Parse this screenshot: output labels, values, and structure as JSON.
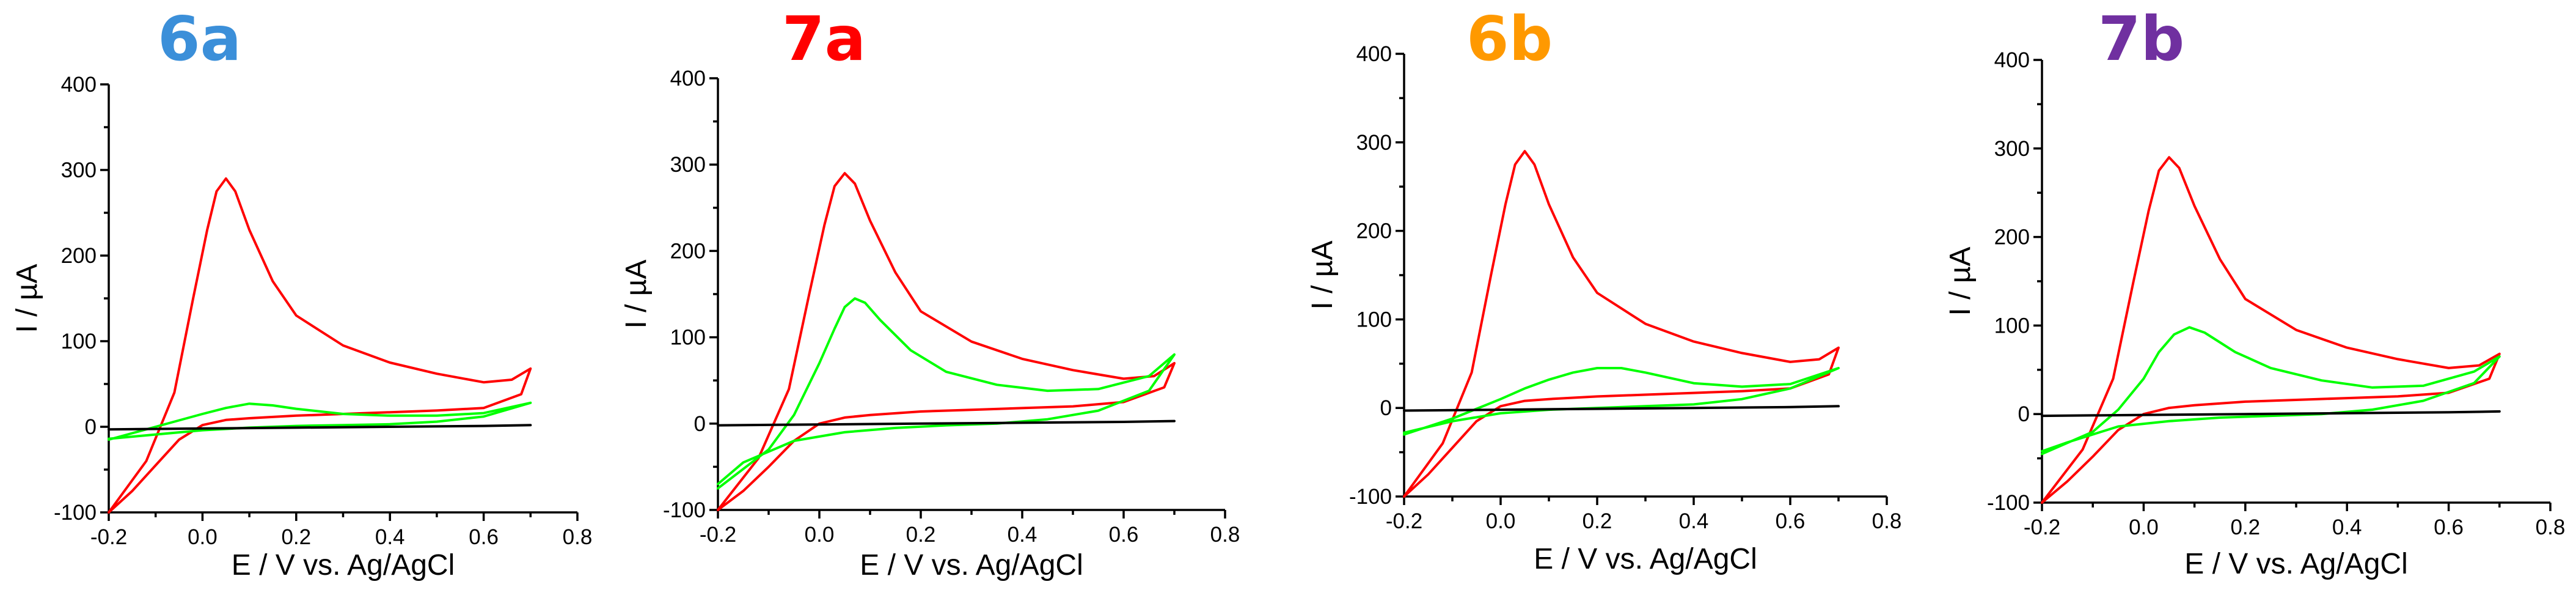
{
  "colors": {
    "cv_active": "#ff0000",
    "cv_modified": "#00ff00",
    "cv_blank": "#000000"
  },
  "chart_data": [
    {
      "type": "line",
      "title": "6a",
      "title_color": "#3b8fd9",
      "xlabel": "E / V vs. Ag/AgCl",
      "ylabel": "I / µA",
      "xlim": [
        -0.2,
        0.8
      ],
      "ylim": [
        -100,
        400
      ],
      "xticks": [
        -0.2,
        0.0,
        0.2,
        0.4,
        0.6,
        0.8
      ],
      "yticks": [
        -100,
        0,
        100,
        200,
        300,
        400
      ],
      "xtick_labels": [
        "-0.2",
        "0.0",
        "0.2",
        "0.4",
        "0.6",
        "0.8"
      ],
      "ytick_labels": [
        "-100",
        "0",
        "100",
        "200",
        "300",
        "400"
      ],
      "grid": false,
      "series": [
        {
          "color": "#ff0000",
          "x": [
            -0.2,
            -0.12,
            -0.06,
            -0.02,
            0.01,
            0.03,
            0.05,
            0.07,
            0.1,
            0.15,
            0.2,
            0.3,
            0.4,
            0.5,
            0.6,
            0.66,
            0.7,
            0.68,
            0.6,
            0.5,
            0.4,
            0.3,
            0.2,
            0.1,
            0.05,
            0.0,
            -0.05,
            -0.1,
            -0.15,
            -0.2
          ],
          "y": [
            -100,
            -40,
            40,
            150,
            230,
            275,
            290,
            275,
            230,
            170,
            130,
            95,
            75,
            62,
            52,
            55,
            68,
            38,
            22,
            19,
            17,
            15,
            13,
            10,
            8,
            2,
            -15,
            -45,
            -75,
            -100
          ]
        },
        {
          "color": "#00ff00",
          "x": [
            -0.2,
            -0.1,
            0.0,
            0.05,
            0.1,
            0.15,
            0.2,
            0.3,
            0.4,
            0.5,
            0.6,
            0.7,
            0.6,
            0.5,
            0.4,
            0.3,
            0.2,
            0.1,
            0.0,
            -0.1,
            -0.2
          ],
          "y": [
            -15,
            0,
            15,
            22,
            27,
            25,
            21,
            15,
            13,
            13,
            16,
            28,
            12,
            6,
            3,
            2,
            1,
            -1,
            -4,
            -9,
            -14
          ]
        },
        {
          "color": "#000000",
          "x": [
            -0.2,
            0.0,
            0.2,
            0.4,
            0.6,
            0.7
          ],
          "y": [
            -3,
            -2,
            -1,
            0,
            1,
            2
          ]
        }
      ]
    },
    {
      "type": "line",
      "title": "7a",
      "title_color": "#ff0000",
      "xlabel": "E / V vs. Ag/AgCl",
      "ylabel": "I / µA",
      "xlim": [
        -0.2,
        0.8
      ],
      "ylim": [
        -100,
        400
      ],
      "xticks": [
        -0.2,
        0.0,
        0.2,
        0.4,
        0.6,
        0.8
      ],
      "yticks": [
        -100,
        0,
        100,
        200,
        300,
        400
      ],
      "xtick_labels": [
        "-0.2",
        "0.0",
        "0.2",
        "0.4",
        "0.6",
        "0.8"
      ],
      "ytick_labels": [
        "-100",
        "0",
        "100",
        "200",
        "300",
        "400"
      ],
      "grid": false,
      "series": [
        {
          "color": "#ff0000",
          "x": [
            -0.2,
            -0.12,
            -0.06,
            -0.02,
            0.01,
            0.03,
            0.05,
            0.07,
            0.1,
            0.15,
            0.2,
            0.3,
            0.4,
            0.5,
            0.6,
            0.66,
            0.7,
            0.68,
            0.6,
            0.5,
            0.4,
            0.3,
            0.2,
            0.1,
            0.05,
            0.0,
            -0.05,
            -0.1,
            -0.15,
            -0.2
          ],
          "y": [
            -100,
            -40,
            40,
            150,
            230,
            275,
            290,
            278,
            235,
            175,
            130,
            95,
            75,
            62,
            52,
            55,
            70,
            42,
            25,
            20,
            18,
            16,
            14,
            10,
            7,
            0,
            -20,
            -50,
            -78,
            -100
          ]
        },
        {
          "color": "#00ff00",
          "x": [
            -0.2,
            -0.1,
            -0.05,
            0.0,
            0.03,
            0.05,
            0.07,
            0.09,
            0.12,
            0.18,
            0.25,
            0.35,
            0.45,
            0.55,
            0.65,
            0.7,
            0.65,
            0.55,
            0.45,
            0.35,
            0.25,
            0.15,
            0.05,
            -0.05,
            -0.15,
            -0.2
          ],
          "y": [
            -75,
            -30,
            10,
            70,
            110,
            135,
            145,
            140,
            120,
            85,
            60,
            45,
            38,
            40,
            55,
            80,
            38,
            15,
            5,
            0,
            -2,
            -5,
            -10,
            -20,
            -45,
            -70
          ]
        },
        {
          "color": "#000000",
          "x": [
            -0.2,
            0.0,
            0.2,
            0.4,
            0.6,
            0.7
          ],
          "y": [
            -2,
            -1,
            0,
            1,
            2,
            3
          ]
        }
      ]
    },
    {
      "type": "line",
      "title": "6b",
      "title_color": "#ff9900",
      "xlabel": "E / V vs. Ag/AgCl",
      "ylabel": "I / µA",
      "xlim": [
        -0.2,
        0.8
      ],
      "ylim": [
        -100,
        400
      ],
      "xticks": [
        -0.2,
        0.0,
        0.2,
        0.4,
        0.6,
        0.8
      ],
      "yticks": [
        -100,
        0,
        100,
        200,
        300,
        400
      ],
      "xtick_labels": [
        "-0.2",
        "0.0",
        "0.2",
        "0.4",
        "0.6",
        "0.8"
      ],
      "ytick_labels": [
        "-100",
        "0",
        "100",
        "200",
        "300",
        "400"
      ],
      "grid": false,
      "series": [
        {
          "color": "#ff0000",
          "x": [
            -0.2,
            -0.12,
            -0.06,
            -0.02,
            0.01,
            0.03,
            0.05,
            0.07,
            0.1,
            0.15,
            0.2,
            0.3,
            0.4,
            0.5,
            0.6,
            0.66,
            0.7,
            0.68,
            0.6,
            0.5,
            0.4,
            0.3,
            0.2,
            0.1,
            0.05,
            0.0,
            -0.05,
            -0.1,
            -0.15,
            -0.2
          ],
          "y": [
            -100,
            -40,
            40,
            150,
            230,
            275,
            290,
            275,
            230,
            170,
            130,
            95,
            75,
            62,
            52,
            55,
            68,
            38,
            22,
            19,
            17,
            15,
            13,
            10,
            8,
            2,
            -15,
            -45,
            -75,
            -100
          ]
        },
        {
          "color": "#00ff00",
          "x": [
            -0.2,
            -0.1,
            0.0,
            0.05,
            0.1,
            0.15,
            0.2,
            0.25,
            0.3,
            0.4,
            0.5,
            0.6,
            0.7,
            0.6,
            0.5,
            0.4,
            0.3,
            0.2,
            0.1,
            0.0,
            -0.1,
            -0.2
          ],
          "y": [
            -30,
            -12,
            10,
            22,
            32,
            40,
            45,
            45,
            40,
            28,
            24,
            27,
            45,
            22,
            10,
            4,
            2,
            0,
            -2,
            -6,
            -15,
            -28
          ]
        },
        {
          "color": "#000000",
          "x": [
            -0.2,
            0.0,
            0.2,
            0.4,
            0.6,
            0.7
          ],
          "y": [
            -3,
            -2,
            -1,
            0,
            1,
            2
          ]
        }
      ]
    },
    {
      "type": "line",
      "title": "7b",
      "title_color": "#7030a0",
      "xlabel": "E / V vs. Ag/AgCl",
      "ylabel": "I / µA",
      "xlim": [
        -0.2,
        0.8
      ],
      "ylim": [
        -100,
        400
      ],
      "xticks": [
        -0.2,
        0.0,
        0.2,
        0.4,
        0.6,
        0.8
      ],
      "yticks": [
        -100,
        0,
        100,
        200,
        300,
        400
      ],
      "xtick_labels": [
        "-0.2",
        "0.0",
        "0.2",
        "0.4",
        "0.6",
        "0.8"
      ],
      "ytick_labels": [
        "-100",
        "0",
        "100",
        "200",
        "300",
        "400"
      ],
      "grid": false,
      "series": [
        {
          "color": "#ff0000",
          "x": [
            -0.2,
            -0.12,
            -0.06,
            -0.02,
            0.01,
            0.03,
            0.05,
            0.07,
            0.1,
            0.15,
            0.2,
            0.3,
            0.4,
            0.5,
            0.6,
            0.66,
            0.7,
            0.68,
            0.6,
            0.5,
            0.4,
            0.3,
            0.2,
            0.1,
            0.05,
            0.0,
            -0.05,
            -0.1,
            -0.15,
            -0.2
          ],
          "y": [
            -100,
            -40,
            40,
            150,
            230,
            275,
            290,
            278,
            235,
            175,
            130,
            95,
            75,
            62,
            52,
            55,
            68,
            40,
            24,
            20,
            18,
            16,
            14,
            10,
            7,
            0,
            -18,
            -48,
            -76,
            -100
          ]
        },
        {
          "color": "#00ff00",
          "x": [
            -0.2,
            -0.1,
            -0.05,
            0.0,
            0.03,
            0.06,
            0.09,
            0.12,
            0.18,
            0.25,
            0.35,
            0.45,
            0.55,
            0.65,
            0.7,
            0.65,
            0.55,
            0.45,
            0.35,
            0.25,
            0.15,
            0.05,
            -0.05,
            -0.15,
            -0.2
          ],
          "y": [
            -45,
            -20,
            5,
            40,
            70,
            90,
            98,
            92,
            70,
            52,
            38,
            30,
            32,
            48,
            65,
            35,
            15,
            5,
            0,
            -2,
            -4,
            -8,
            -14,
            -32,
            -42
          ]
        },
        {
          "color": "#000000",
          "x": [
            -0.2,
            0.0,
            0.2,
            0.4,
            0.6,
            0.7
          ],
          "y": [
            -2,
            -1,
            0,
            1,
            2,
            3
          ]
        }
      ]
    }
  ]
}
